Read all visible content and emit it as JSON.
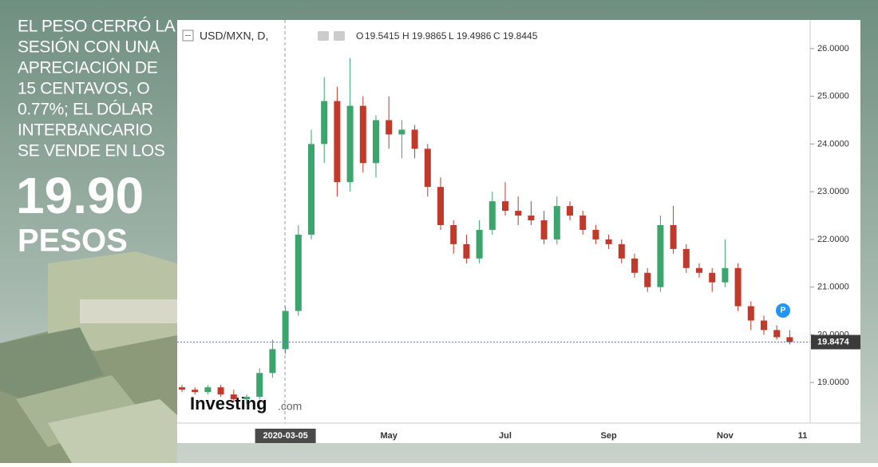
{
  "headline": {
    "lines": [
      "EL PESO CERRÓ LA",
      "SESIÓN CON UNA",
      "APRECIACIÓN DE",
      "15 CENTAVOS, O",
      "0.77%; EL DÓLAR",
      "INTERBANCARIO",
      "SE VENDE EN LOS"
    ],
    "price": "19.90",
    "unit": "PESOS"
  },
  "chart_data": {
    "type": "candlestick",
    "symbol": "USD/MXN, D,",
    "ohlc_header": [
      {
        "label": "O",
        "value": 19.5415
      },
      {
        "label": "H",
        "value": 19.9865
      },
      {
        "label": "L",
        "value": 19.4986
      },
      {
        "label": "C",
        "value": 19.8445
      }
    ],
    "watermark": [
      "Investing",
      ".com"
    ],
    "categories": [
      null,
      null,
      null,
      null,
      null,
      null,
      null,
      null,
      "2020-03-05",
      null,
      null,
      null,
      null,
      null,
      null,
      null,
      "May",
      null,
      null,
      null,
      null,
      null,
      null,
      null,
      null,
      "Jul",
      null,
      null,
      null,
      null,
      null,
      null,
      null,
      "Sep",
      null,
      null,
      null,
      null,
      null,
      null,
      null,
      null,
      "Nov",
      null,
      null,
      null,
      null,
      null,
      "11"
    ],
    "series": [
      {
        "up_color": "#3ca56e",
        "down_color": "#c0392b",
        "open": [
          18.9,
          18.85,
          18.8,
          18.9,
          18.75,
          18.65,
          18.7,
          19.2,
          19.7,
          20.5,
          22.1,
          24.0,
          24.9,
          23.2,
          24.8,
          23.6,
          24.5,
          24.2,
          24.3,
          23.9,
          23.1,
          22.3,
          21.9,
          21.6,
          22.2,
          22.8,
          22.6,
          22.5,
          22.4,
          22.0,
          22.7,
          22.5,
          22.2,
          22.0,
          21.9,
          21.6,
          21.3,
          21.0,
          22.3,
          21.8,
          21.4,
          21.3,
          21.1,
          21.4,
          20.6,
          20.3,
          20.1,
          19.95,
          null
        ],
        "high": [
          18.95,
          18.9,
          18.95,
          18.95,
          18.85,
          18.75,
          19.3,
          19.9,
          20.6,
          22.3,
          24.3,
          25.4,
          25.2,
          25.8,
          25.0,
          24.6,
          25.0,
          24.5,
          24.4,
          24.0,
          23.3,
          22.4,
          22.1,
          22.4,
          23.0,
          23.2,
          22.9,
          22.8,
          22.6,
          22.9,
          22.8,
          22.6,
          22.3,
          22.1,
          22.0,
          21.7,
          21.4,
          22.5,
          22.7,
          21.9,
          21.5,
          21.4,
          22.0,
          21.5,
          20.7,
          20.4,
          20.2,
          20.1,
          null
        ],
        "low": [
          18.8,
          18.75,
          18.75,
          18.7,
          18.6,
          18.55,
          18.65,
          19.1,
          19.6,
          20.4,
          22.0,
          23.6,
          22.9,
          23.0,
          23.4,
          23.3,
          23.9,
          23.7,
          23.7,
          22.9,
          22.2,
          21.7,
          21.5,
          21.5,
          22.1,
          22.5,
          22.3,
          22.3,
          21.9,
          21.9,
          22.4,
          22.1,
          21.9,
          21.8,
          21.5,
          21.2,
          20.9,
          20.9,
          21.7,
          21.3,
          21.2,
          20.9,
          21.0,
          20.5,
          20.1,
          20.0,
          19.9,
          19.8,
          null
        ],
        "close": [
          18.85,
          18.8,
          18.9,
          18.75,
          18.65,
          18.7,
          19.2,
          19.7,
          20.5,
          22.1,
          24.0,
          24.9,
          23.2,
          24.8,
          23.6,
          24.5,
          24.2,
          24.3,
          23.9,
          23.1,
          22.3,
          21.9,
          21.6,
          22.2,
          22.8,
          22.6,
          22.5,
          22.4,
          22.0,
          22.7,
          22.5,
          22.2,
          22.0,
          21.9,
          21.6,
          21.3,
          21.0,
          22.3,
          21.8,
          21.4,
          21.3,
          21.1,
          21.4,
          20.6,
          20.3,
          20.1,
          19.95,
          19.85,
          null
        ]
      }
    ],
    "ylim": [
      18.15,
      26.6
    ],
    "yticks": [
      {
        "value": 19,
        "label": "19.0000"
      },
      {
        "value": 20,
        "label": "20.0000"
      },
      {
        "value": 21,
        "label": "21.0000"
      },
      {
        "value": 22,
        "label": "22.0000"
      },
      {
        "value": 23,
        "label": "23.0000"
      },
      {
        "value": 24,
        "label": "24.0000"
      },
      {
        "value": 25,
        "label": "25.0000"
      },
      {
        "value": 26,
        "label": "26.0000"
      }
    ],
    "last_price": 19.8474,
    "grid": false
  }
}
